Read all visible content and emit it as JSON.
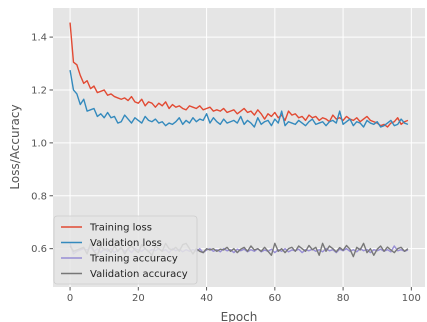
{
  "chart_data": {
    "type": "line",
    "title": "",
    "xlabel": "Epoch",
    "ylabel": "Loss/Accuracy",
    "xlim": [
      -5,
      104
    ],
    "ylim": [
      0.455,
      1.51
    ],
    "xticks": [
      0,
      20,
      40,
      60,
      80,
      100
    ],
    "xtick_labels": [
      "0",
      "20",
      "40",
      "60",
      "80",
      "100"
    ],
    "yticks": [
      0.6,
      0.8,
      1.0,
      1.2,
      1.4
    ],
    "ytick_labels": [
      "0.6",
      "0.8",
      "1.0",
      "1.2",
      "1.4"
    ],
    "grid": true,
    "legend_position": "lower-left",
    "background": "#e5e5e5",
    "x": [
      0,
      1,
      2,
      3,
      4,
      5,
      6,
      7,
      8,
      9,
      10,
      11,
      12,
      13,
      14,
      15,
      16,
      17,
      18,
      19,
      20,
      21,
      22,
      23,
      24,
      25,
      26,
      27,
      28,
      29,
      30,
      31,
      32,
      33,
      34,
      35,
      36,
      37,
      38,
      39,
      40,
      41,
      42,
      43,
      44,
      45,
      46,
      47,
      48,
      49,
      50,
      51,
      52,
      53,
      54,
      55,
      56,
      57,
      58,
      59,
      60,
      61,
      62,
      63,
      64,
      65,
      66,
      67,
      68,
      69,
      70,
      71,
      72,
      73,
      74,
      75,
      76,
      77,
      78,
      79,
      80,
      81,
      82,
      83,
      84,
      85,
      86,
      87,
      88,
      89,
      90,
      91,
      92,
      93,
      94,
      95,
      96,
      97,
      98,
      99
    ],
    "series": [
      {
        "name": "Training loss",
        "color": "#e24a33",
        "values": [
          1.455,
          1.305,
          1.295,
          1.255,
          1.225,
          1.235,
          1.205,
          1.215,
          1.19,
          1.195,
          1.2,
          1.18,
          1.185,
          1.175,
          1.17,
          1.165,
          1.17,
          1.16,
          1.175,
          1.155,
          1.15,
          1.165,
          1.14,
          1.155,
          1.15,
          1.135,
          1.15,
          1.14,
          1.155,
          1.13,
          1.145,
          1.135,
          1.14,
          1.13,
          1.125,
          1.14,
          1.135,
          1.13,
          1.14,
          1.125,
          1.13,
          1.135,
          1.12,
          1.125,
          1.12,
          1.13,
          1.115,
          1.12,
          1.125,
          1.11,
          1.12,
          1.13,
          1.115,
          1.12,
          1.105,
          1.125,
          1.11,
          1.09,
          1.11,
          1.1,
          1.115,
          1.095,
          1.105,
          1.085,
          1.12,
          1.105,
          1.11,
          1.095,
          1.1,
          1.085,
          1.105,
          1.095,
          1.1,
          1.085,
          1.095,
          1.09,
          1.08,
          1.105,
          1.09,
          1.095,
          1.085,
          1.1,
          1.09,
          1.085,
          1.095,
          1.08,
          1.09,
          1.1,
          1.085,
          1.08,
          1.075,
          1.065,
          1.07,
          1.06,
          1.075,
          1.08,
          1.095,
          1.07,
          1.08,
          1.085
        ]
      },
      {
        "name": "Validation loss",
        "color": "#348abd",
        "values": [
          1.275,
          1.2,
          1.185,
          1.145,
          1.165,
          1.12,
          1.125,
          1.13,
          1.1,
          1.11,
          1.095,
          1.115,
          1.095,
          1.1,
          1.075,
          1.08,
          1.105,
          1.09,
          1.075,
          1.095,
          1.085,
          1.075,
          1.1,
          1.085,
          1.08,
          1.09,
          1.075,
          1.08,
          1.065,
          1.075,
          1.07,
          1.08,
          1.095,
          1.07,
          1.085,
          1.075,
          1.095,
          1.08,
          1.09,
          1.085,
          1.11,
          1.075,
          1.095,
          1.08,
          1.07,
          1.09,
          1.075,
          1.08,
          1.085,
          1.075,
          1.1,
          1.07,
          1.085,
          1.075,
          1.06,
          1.095,
          1.07,
          1.08,
          1.085,
          1.065,
          1.09,
          1.075,
          1.12,
          1.065,
          1.08,
          1.075,
          1.07,
          1.085,
          1.075,
          1.065,
          1.08,
          1.09,
          1.07,
          1.075,
          1.08,
          1.065,
          1.08,
          1.085,
          1.075,
          1.12,
          1.07,
          1.08,
          1.09,
          1.065,
          1.08,
          1.075,
          1.06,
          1.085,
          1.075,
          1.07,
          1.08,
          1.06,
          1.065,
          1.075,
          1.085,
          1.065,
          1.07,
          1.09,
          1.075,
          1.07
        ]
      },
      {
        "name": "Training accuracy",
        "color": "#988ed5",
        "values": [
          0.62,
          0.58,
          0.59,
          0.595,
          0.6,
          0.595,
          0.605,
          0.59,
          0.6,
          0.585,
          0.6,
          0.59,
          0.6,
          0.585,
          0.595,
          0.6,
          0.59,
          0.598,
          0.585,
          0.6,
          0.595,
          0.59,
          0.6,
          0.588,
          0.597,
          0.592,
          0.6,
          0.59,
          0.596,
          0.585,
          0.6,
          0.592,
          0.598,
          0.588,
          0.596,
          0.59,
          0.597,
          0.59,
          0.6,
          0.585,
          0.595,
          0.6,
          0.59,
          0.596,
          0.588,
          0.6,
          0.592,
          0.596,
          0.585,
          0.598,
          0.592,
          0.598,
          0.588,
          0.596,
          0.59,
          0.6,
          0.588,
          0.595,
          0.59,
          0.598,
          0.585,
          0.596,
          0.59,
          0.6,
          0.588,
          0.595,
          0.592,
          0.598,
          0.585,
          0.596,
          0.592,
          0.598,
          0.59,
          0.596,
          0.588,
          0.6,
          0.592,
          0.596,
          0.585,
          0.598,
          0.592,
          0.6,
          0.59,
          0.596,
          0.588,
          0.6,
          0.592,
          0.597,
          0.585,
          0.596,
          0.592,
          0.598,
          0.59,
          0.596,
          0.588,
          0.61,
          0.592,
          0.596,
          0.59,
          0.595
        ]
      },
      {
        "name": "Validation accuracy",
        "color": "#777777",
        "values": [
          0.61,
          0.59,
          0.595,
          0.6,
          0.605,
          0.58,
          0.62,
          0.59,
          0.575,
          0.61,
          0.595,
          0.6,
          0.585,
          0.61,
          0.59,
          0.605,
          0.58,
          0.6,
          0.61,
          0.595,
          0.585,
          0.615,
          0.6,
          0.59,
          0.575,
          0.61,
          0.6,
          0.59,
          0.62,
          0.6,
          0.595,
          0.605,
          0.59,
          0.615,
          0.62,
          0.6,
          0.58,
          0.6,
          0.59,
          0.585,
          0.6,
          0.595,
          0.6,
          0.59,
          0.598,
          0.595,
          0.605,
          0.59,
          0.6,
          0.585,
          0.598,
          0.605,
          0.59,
          0.61,
          0.595,
          0.6,
          0.59,
          0.605,
          0.59,
          0.575,
          0.62,
          0.59,
          0.6,
          0.585,
          0.6,
          0.605,
          0.59,
          0.61,
          0.6,
          0.59,
          0.612,
          0.596,
          0.605,
          0.575,
          0.62,
          0.59,
          0.61,
          0.6,
          0.588,
          0.604,
          0.594,
          0.612,
          0.598,
          0.57,
          0.605,
          0.595,
          0.62,
          0.585,
          0.6,
          0.575,
          0.598,
          0.61,
          0.59,
          0.606,
          0.595,
          0.585,
          0.6,
          0.605,
          0.59,
          0.6
        ]
      }
    ]
  }
}
